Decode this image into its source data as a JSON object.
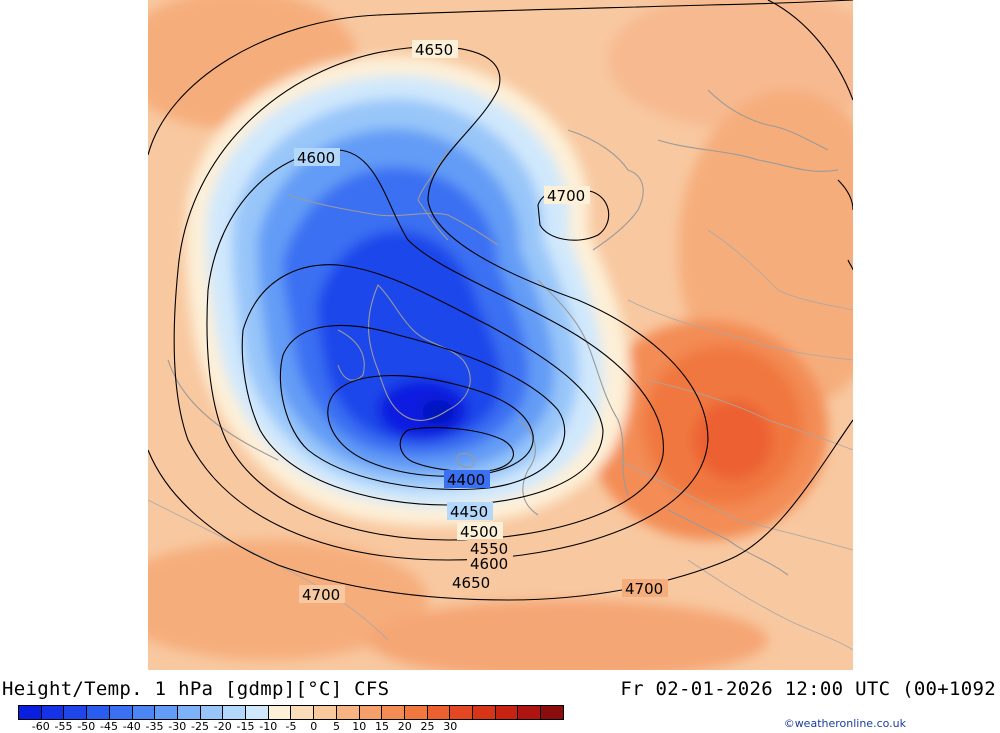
{
  "title": "Height/Temp. 1 hPa [gdmp][°C] CFS",
  "datetime": "Fr 02-01-2026 12:00 UTC (00+1092",
  "credit": "©weatheronline.co.uk",
  "contour_labels": [
    {
      "id": "c4650-top",
      "text": "4650"
    },
    {
      "id": "c4600-left",
      "text": "4600"
    },
    {
      "id": "c4700-ne",
      "text": "4700"
    },
    {
      "id": "c4400",
      "text": "4400"
    },
    {
      "id": "c4450",
      "text": "4450"
    },
    {
      "id": "c4500",
      "text": "4500"
    },
    {
      "id": "c4550",
      "text": "4550"
    },
    {
      "id": "c4600-s",
      "text": "4600"
    },
    {
      "id": "c4650-s",
      "text": "4650"
    },
    {
      "id": "c4700-sw",
      "text": "4700"
    },
    {
      "id": "c4700-se",
      "text": "4700"
    }
  ],
  "legend": {
    "ticks": [
      "-60",
      "-55",
      "-50",
      "-45",
      "-40",
      "-35",
      "-30",
      "-25",
      "-20",
      "-15",
      "-10",
      "-5",
      "0",
      "5",
      "10",
      "15",
      "20",
      "25",
      "30"
    ],
    "colors": [
      "#0a1ee0",
      "#1432e6",
      "#1e46ea",
      "#2a5cf0",
      "#3a70f2",
      "#4c86f4",
      "#639cf6",
      "#7db2f8",
      "#98c6f9",
      "#b4d8fb",
      "#d0e8fc",
      "#fdf0d8",
      "#fbdcb8",
      "#f9c89c",
      "#f7b482",
      "#f5a06a",
      "#f38c54",
      "#f07840",
      "#ec6030",
      "#e44822",
      "#d83418",
      "#c82212",
      "#b01410",
      "#8a0c0c"
    ]
  }
}
